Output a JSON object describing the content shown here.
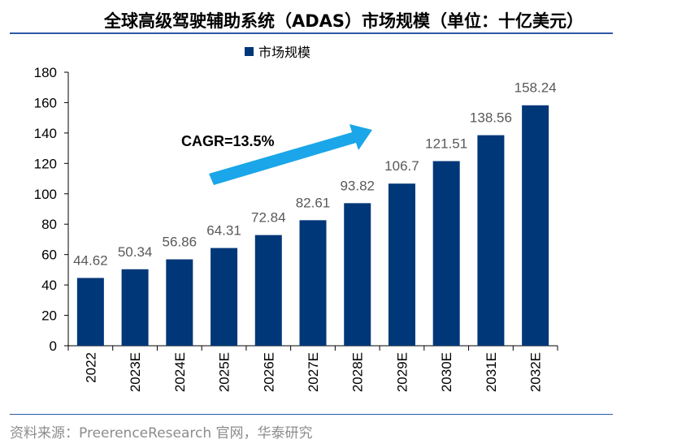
{
  "title": "全球高级驾驶辅助系统（ADAS）市场规模（单位：十亿美元）",
  "source": "资料来源：PreerenceResearch 官网，华泰研究",
  "chart_data": {
    "type": "bar",
    "categories": [
      "2022",
      "2023E",
      "2024E",
      "2025E",
      "2026E",
      "2027E",
      "2028E",
      "2029E",
      "2030E",
      "2031E",
      "2032E"
    ],
    "series": [
      {
        "name": "市场规模",
        "values": [
          44.62,
          50.34,
          56.86,
          64.31,
          72.84,
          82.61,
          93.82,
          106.7,
          121.51,
          138.56,
          158.24
        ],
        "labels": [
          "44.62",
          "50.34",
          "56.86",
          "64.31",
          "72.84",
          "82.61",
          "93.82",
          "106.7",
          "121.51",
          "138.56",
          "158.24"
        ]
      }
    ],
    "ylim": [
      0,
      180
    ],
    "yticks": [
      0,
      20,
      40,
      60,
      80,
      100,
      120,
      140,
      160,
      180
    ],
    "grid": false,
    "legend": "top-center",
    "annotation": "CAGR=13.5%",
    "colors": {
      "bar": "#003778",
      "arrow": "#1aa6e8",
      "axis": "#000000"
    }
  }
}
